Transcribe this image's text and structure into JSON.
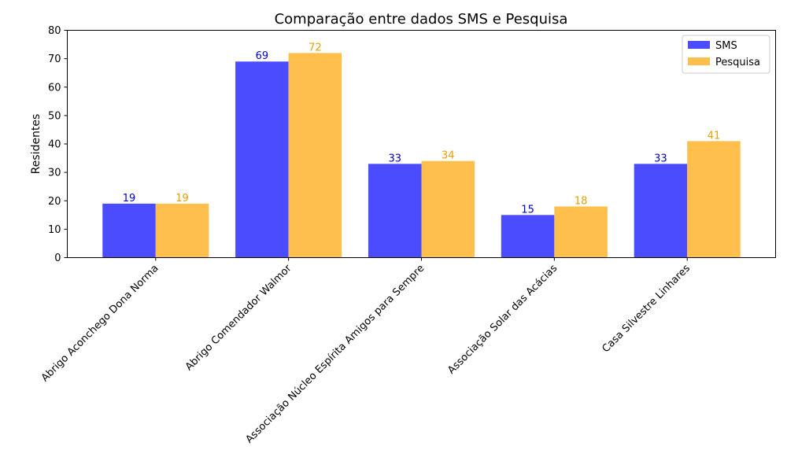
{
  "chart_data": {
    "type": "bar",
    "title": "Comparação entre dados SMS e Pesquisa",
    "xlabel": "",
    "ylabel": "Residentes",
    "ylim": [
      0,
      80
    ],
    "yticks": [
      0,
      10,
      20,
      30,
      40,
      50,
      60,
      70,
      80
    ],
    "grid": false,
    "legend_position": "top-right",
    "categories": [
      "Abrigo Aconchego Dona Norma",
      "Abrigo Comendador Walmor",
      "Associação Núcleo Espírita Amigos para Sempre",
      "Associação Solar das Acácias",
      "Casa Silvestre Linhares"
    ],
    "series": [
      {
        "name": "SMS",
        "values": [
          19,
          69,
          33,
          15,
          33
        ],
        "color": "#4c4cff",
        "label_color": "#0000cc"
      },
      {
        "name": "Pesquisa",
        "values": [
          19,
          72,
          34,
          18,
          41
        ],
        "color": "#ffbf4d",
        "label_color": "#e6a000"
      }
    ]
  }
}
